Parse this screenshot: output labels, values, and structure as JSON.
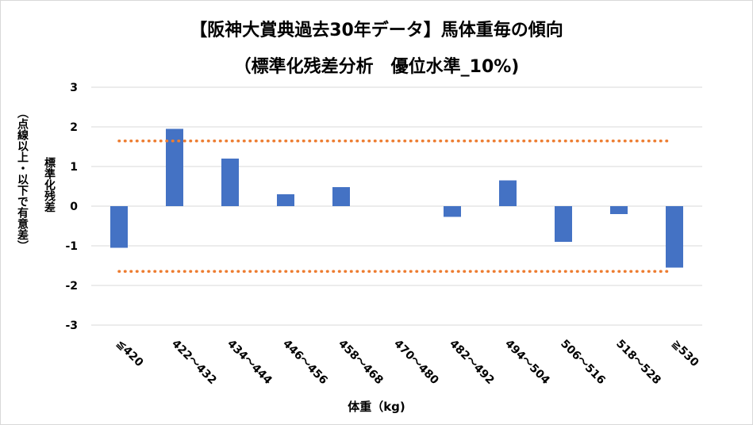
{
  "title_line1": "【阪神大賞典過去30年データ】馬体重毎の傾向",
  "title_line2": "（標準化残差分析　優位水準_10%)",
  "y_axis_label": "標準化残差",
  "y_axis_note": "（点線以上・以下で有意差）",
  "x_axis_label": "体重（kg)",
  "colors": {
    "bar": "#4472c4",
    "threshold": "#ed7d31",
    "grid": "#d9d9d9"
  },
  "chart_data": {
    "type": "bar",
    "title": "【阪神大賞典過去30年データ】馬体重毎の傾向",
    "subtitle": "（標準化残差分析　優位水準_10%)",
    "xlabel": "体重（kg)",
    "ylabel": "標準化残差",
    "categories": [
      "≦420",
      "422～432",
      "434～444",
      "446～456",
      "458～468",
      "470～480",
      "482～492",
      "494～504",
      "506～516",
      "518～528",
      "≧530"
    ],
    "values": [
      -1.05,
      1.95,
      1.2,
      0.3,
      0.48,
      0.0,
      -0.27,
      0.65,
      -0.9,
      -0.2,
      -1.55
    ],
    "ylim": [
      -3,
      3
    ],
    "yticks": [
      -3,
      -2,
      -1,
      0,
      1,
      2,
      3
    ],
    "thresholds": [
      1.645,
      -1.645
    ],
    "grid": true
  }
}
